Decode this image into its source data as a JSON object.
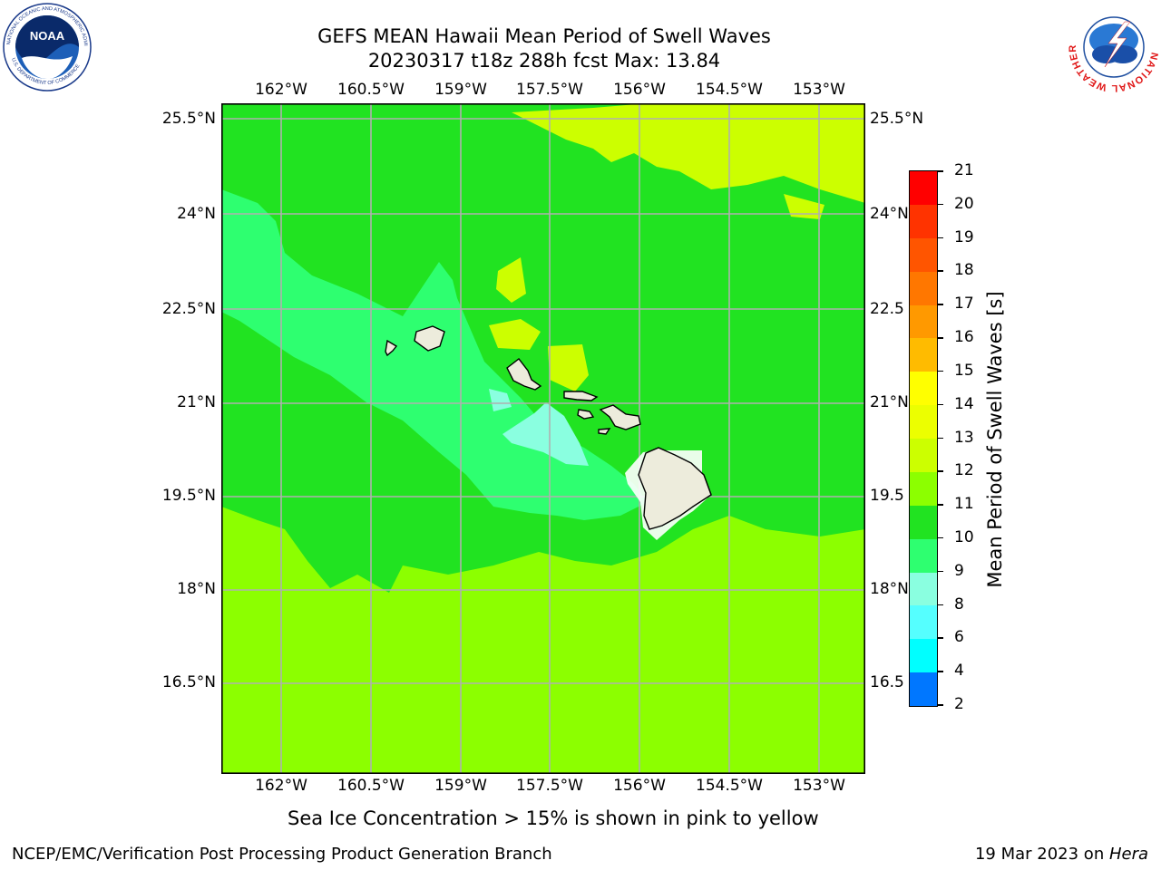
{
  "header": {
    "title_line1": "GEFS MEAN Hawaii Mean Period of Swell Waves",
    "title_line2": "20230317 t18z 288h fcst   Max: 13.84"
  },
  "logos": {
    "noaa": {
      "text": "NOAA",
      "ring_text": "NATIONAL OCEANIC AND ATMOSPHERIC ADMINISTRATION",
      "bottom_text": "U.S. DEPARTMENT OF COMMERCE"
    },
    "nws": {
      "ring_text": "NATIONAL WEATHER SERVICE"
    }
  },
  "map": {
    "lon_labels": [
      "162°W",
      "160.5°W",
      "159°W",
      "157.5°W",
      "156°W",
      "154.5°W",
      "153°W"
    ],
    "lat_labels": [
      "25.5°N",
      "24°N",
      "22.5°N",
      "21°N",
      "19.5°N",
      "18°N",
      "16.5°N"
    ],
    "lat_labels_right": [
      "25.5°N",
      "24°N",
      "22.5",
      "21°N",
      "19.5",
      "18°N",
      "16.5"
    ],
    "colors": {
      "level_11_12": "#21e321",
      "level_12_13": "#8cff00",
      "level_13_14": "#ccff00",
      "level_10_11": "#2eff70",
      "level_9_10": "#8affe0",
      "land": "#edecdc",
      "grid": "#b0b0b0"
    }
  },
  "colorbar": {
    "label": "Mean Period of Swell Waves [s]",
    "ticks": [
      "21",
      "20",
      "19",
      "18",
      "17",
      "16",
      "15",
      "14",
      "13",
      "12",
      "11",
      "10",
      "9",
      "8",
      "6",
      "4",
      "2"
    ],
    "colors": [
      "#ff0000",
      "#ff3300",
      "#ff5500",
      "#ff7700",
      "#ff9900",
      "#ffbb00",
      "#ffff00",
      "#ecff00",
      "#ccff00",
      "#8cff00",
      "#21e321",
      "#2eff70",
      "#8affe0",
      "#55ffff",
      "#00ffff",
      "#0077ff",
      "#0000ff"
    ]
  },
  "notes": {
    "sea_ice": "Sea Ice Concentration > 15% is shown in pink to yellow"
  },
  "footer": {
    "left": "NCEP/EMC/Verification Post Processing Product Generation Branch",
    "right_date": "19 Mar 2023 on ",
    "right_host": "Hera"
  }
}
